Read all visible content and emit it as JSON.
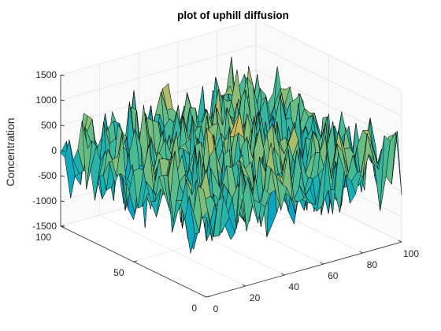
{
  "chart_data": {
    "type": "surface",
    "title": "plot of uphill diffusion",
    "xlabel": "",
    "ylabel": "",
    "zlabel": "Concentration",
    "xlim": [
      0,
      100
    ],
    "ylim": [
      0,
      100
    ],
    "zlim": [
      -1500,
      1500
    ],
    "x_ticks": [
      "0",
      "20",
      "40",
      "60",
      "80",
      "100"
    ],
    "y_ticks": [
      "0",
      "50",
      "100"
    ],
    "z_ticks": [
      "1500",
      "1000",
      "500",
      "0",
      "-500",
      "-1000",
      "-1500"
    ],
    "grid": true,
    "colormap": "parula",
    "edge_color": "#000000",
    "surface_description": "random noise surface roughly uniform over the 100x100 grid, values spanning about -1500 to 1500"
  }
}
